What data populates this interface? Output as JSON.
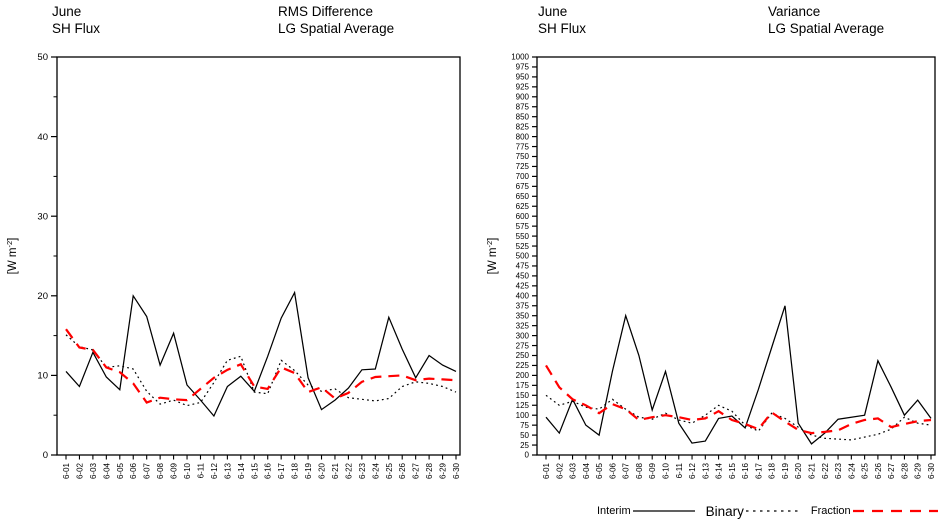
{
  "charts": [
    {
      "header_left_line1": "June",
      "header_left_line2": "SH Flux",
      "header_right_line1": "RMS Difference",
      "header_right_line2": "LG Spatial Average"
    },
    {
      "header_left_line1": "June",
      "header_left_line2": "SH Flux",
      "header_right_line1": "Variance",
      "header_right_line2": "LG Spatial Average"
    }
  ],
  "legend": {
    "items": [
      {
        "label": "Interim",
        "style": "solid",
        "color": "#000000"
      },
      {
        "label": "Binary",
        "style": "dotted",
        "color": "#000000"
      },
      {
        "label": "Fraction",
        "style": "long-dash",
        "color": "#ff0000"
      }
    ]
  },
  "chart_data": [
    {
      "type": "line",
      "title": "RMS Difference LG Spatial Average",
      "subtitle": "June SH Flux",
      "ylabel_prefix": "[W m",
      "ylabel_sup": "-2",
      "ylabel_suffix": "]",
      "ylim": [
        0,
        50
      ],
      "y_major_step": 10,
      "y_minor_step": 5,
      "grid": false,
      "legend_position": "bottom",
      "x": [
        "6-01",
        "6-02",
        "6-03",
        "6-04",
        "6-05",
        "6-06",
        "6-07",
        "6-08",
        "6-09",
        "6-10",
        "6-11",
        "6-12",
        "6-13",
        "6-14",
        "6-15",
        "6-16",
        "6-17",
        "6-18",
        "6-19",
        "6-20",
        "6-21",
        "6-22",
        "6-23",
        "6-24",
        "6-25",
        "6-26",
        "6-27",
        "6-28",
        "6-29",
        "6-30"
      ],
      "series": [
        {
          "name": "Interim",
          "color": "#000000",
          "style": "solid",
          "values": [
            10.5,
            8.6,
            12.9,
            9.8,
            8.2,
            20.0,
            17.4,
            11.3,
            15.3,
            8.8,
            6.9,
            4.9,
            8.6,
            9.9,
            8.0,
            12.4,
            17.2,
            20.4,
            9.7,
            5.7,
            6.9,
            8.4,
            10.7,
            10.8,
            17.3,
            13.3,
            9.7,
            12.5,
            11.3,
            10.5
          ]
        },
        {
          "name": "Binary",
          "color": "#000000",
          "style": "dotted",
          "values": [
            15.1,
            13.6,
            13.2,
            11.0,
            11.2,
            10.8,
            8.0,
            6.4,
            6.9,
            6.2,
            6.6,
            9.1,
            11.9,
            12.4,
            7.9,
            7.7,
            11.9,
            10.6,
            8.8,
            8.0,
            8.3,
            7.2,
            7.0,
            6.8,
            7.1,
            8.6,
            9.2,
            9.0,
            8.6,
            7.9
          ]
        },
        {
          "name": "Fraction",
          "color": "#ff0000",
          "style": "long-dash",
          "values": [
            15.8,
            13.5,
            13.2,
            11.0,
            10.4,
            9.0,
            6.6,
            7.2,
            7.0,
            6.9,
            8.3,
            9.7,
            10.7,
            11.4,
            8.6,
            8.3,
            11.0,
            10.3,
            7.9,
            8.5,
            7.1,
            7.8,
            9.2,
            9.8,
            9.9,
            10.0,
            9.4,
            9.6,
            9.5,
            9.4
          ]
        }
      ]
    },
    {
      "type": "line",
      "title": "Variance LG Spatial Average",
      "subtitle": "June SH Flux",
      "ylabel_prefix": "[W m",
      "ylabel_sup": "-2",
      "ylabel_suffix": "]",
      "ylim": [
        0,
        1000
      ],
      "y_major_step": 25,
      "y_minor_step": null,
      "grid": false,
      "legend_position": "bottom",
      "x": [
        "6-01",
        "6-02",
        "6-03",
        "6-04",
        "6-05",
        "6-06",
        "6-07",
        "6-08",
        "6-09",
        "6-10",
        "6-11",
        "6-12",
        "6-13",
        "6-14",
        "6-15",
        "6-16",
        "6-17",
        "6-18",
        "6-19",
        "6-20",
        "6-21",
        "6-22",
        "6-23",
        "6-24",
        "6-25",
        "6-26",
        "6-27",
        "6-28",
        "6-29",
        "6-30"
      ],
      "series": [
        {
          "name": "Interim",
          "color": "#000000",
          "style": "solid",
          "values": [
            95,
            55,
            140,
            75,
            50,
            210,
            350,
            250,
            113,
            210,
            80,
            30,
            35,
            92,
            98,
            68,
            165,
            270,
            375,
            80,
            28,
            55,
            90,
            95,
            100,
            237,
            170,
            100,
            138,
            92
          ]
        },
        {
          "name": "Binary",
          "color": "#000000",
          "style": "dotted",
          "values": [
            150,
            125,
            135,
            120,
            115,
            140,
            115,
            95,
            90,
            105,
            88,
            80,
            100,
            125,
            110,
            75,
            60,
            105,
            92,
            70,
            50,
            42,
            40,
            38,
            45,
            52,
            65,
            95,
            80,
            75
          ]
        },
        {
          "name": "Fraction",
          "color": "#ff0000",
          "style": "long-dash",
          "values": [
            225,
            170,
            140,
            125,
            105,
            128,
            115,
            88,
            95,
            100,
            95,
            88,
            92,
            110,
            88,
            78,
            65,
            107,
            84,
            63,
            55,
            58,
            62,
            78,
            88,
            92,
            70,
            78,
            85,
            88
          ]
        }
      ]
    }
  ]
}
